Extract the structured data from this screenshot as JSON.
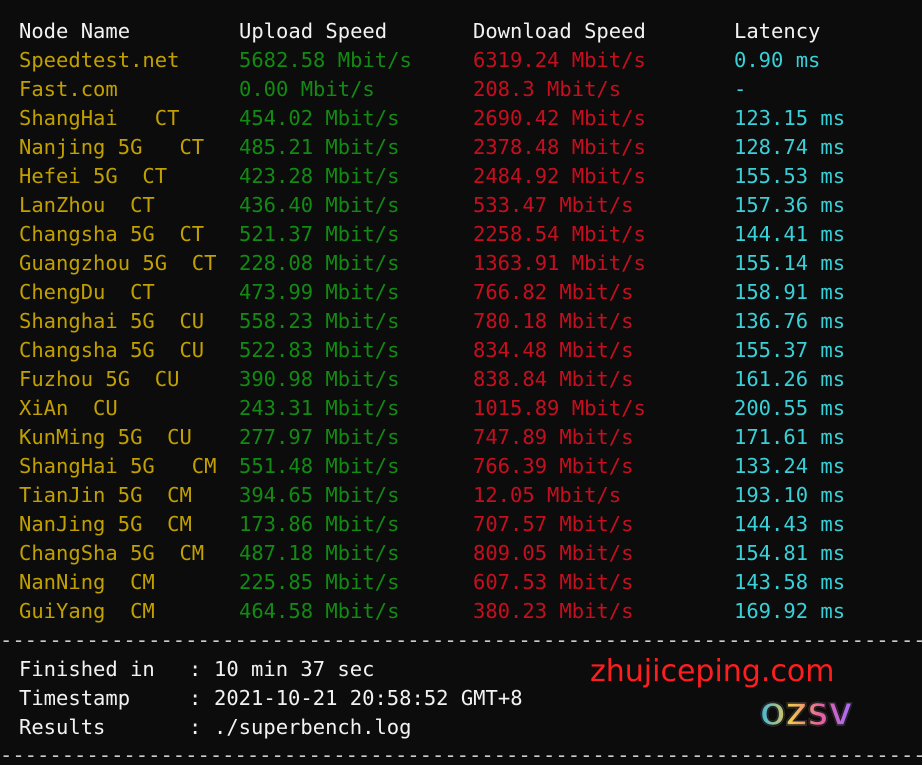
{
  "headers": {
    "node": "Node Name",
    "upload": "Upload Speed",
    "download": "Download Speed",
    "latency": "Latency"
  },
  "rows": [
    {
      "node": "Speedtest.net",
      "upload": "5682.58 Mbit/s",
      "download": "6319.24 Mbit/s",
      "latency": "0.90 ms"
    },
    {
      "node": "Fast.com",
      "upload": "0.00 Mbit/s",
      "download": "208.3 Mbit/s",
      "latency": "-"
    },
    {
      "node": "ShangHai   CT",
      "upload": "454.02 Mbit/s",
      "download": "2690.42 Mbit/s",
      "latency": "123.15 ms"
    },
    {
      "node": "Nanjing 5G   CT",
      "upload": "485.21 Mbit/s",
      "download": "2378.48 Mbit/s",
      "latency": "128.74 ms"
    },
    {
      "node": "Hefei 5G  CT",
      "upload": "423.28 Mbit/s",
      "download": "2484.92 Mbit/s",
      "latency": "155.53 ms"
    },
    {
      "node": "LanZhou  CT",
      "upload": "436.40 Mbit/s",
      "download": "533.47 Mbit/s",
      "latency": "157.36 ms"
    },
    {
      "node": "Changsha 5G  CT",
      "upload": "521.37 Mbit/s",
      "download": "2258.54 Mbit/s",
      "latency": "144.41 ms"
    },
    {
      "node": "Guangzhou 5G  CT",
      "upload": "228.08 Mbit/s",
      "download": "1363.91 Mbit/s",
      "latency": "155.14 ms"
    },
    {
      "node": "ChengDu  CT",
      "upload": "473.99 Mbit/s",
      "download": "766.82 Mbit/s",
      "latency": "158.91 ms"
    },
    {
      "node": "Shanghai 5G  CU",
      "upload": "558.23 Mbit/s",
      "download": "780.18 Mbit/s",
      "latency": "136.76 ms"
    },
    {
      "node": "Changsha 5G  CU",
      "upload": "522.83 Mbit/s",
      "download": "834.48 Mbit/s",
      "latency": "155.37 ms"
    },
    {
      "node": "Fuzhou 5G  CU",
      "upload": "390.98 Mbit/s",
      "download": "838.84 Mbit/s",
      "latency": "161.26 ms"
    },
    {
      "node": "XiAn  CU",
      "upload": "243.31 Mbit/s",
      "download": "1015.89 Mbit/s",
      "latency": "200.55 ms"
    },
    {
      "node": "KunMing 5G  CU",
      "upload": "277.97 Mbit/s",
      "download": "747.89 Mbit/s",
      "latency": "171.61 ms"
    },
    {
      "node": "ShangHai 5G   CM",
      "upload": "551.48 Mbit/s",
      "download": "766.39 Mbit/s",
      "latency": "133.24 ms"
    },
    {
      "node": "TianJin 5G  CM",
      "upload": "394.65 Mbit/s",
      "download": "12.05 Mbit/s",
      "latency": "193.10 ms"
    },
    {
      "node": "NanJing 5G  CM",
      "upload": "173.86 Mbit/s",
      "download": "707.57 Mbit/s",
      "latency": "144.43 ms"
    },
    {
      "node": "ChangSha 5G  CM",
      "upload": "487.18 Mbit/s",
      "download": "809.05 Mbit/s",
      "latency": "154.81 ms"
    },
    {
      "node": "NanNing  CM",
      "upload": "225.85 Mbit/s",
      "download": "607.53 Mbit/s",
      "latency": "143.58 ms"
    },
    {
      "node": "GuiYang  CM",
      "upload": "464.58 Mbit/s",
      "download": "380.23 Mbit/s",
      "latency": "169.92 ms"
    }
  ],
  "footer": [
    {
      "key": "Finished in",
      "sep": ":",
      "value": "10 min 37 sec"
    },
    {
      "key": "Timestamp",
      "sep": ":",
      "value": "2021-10-21 20:58:52 GMT+8"
    },
    {
      "key": "Results",
      "sep": ":",
      "value": "./superbench.log"
    }
  ],
  "watermark": {
    "text": "zhujiceping.com",
    "logo": "OZSV"
  },
  "colors": {
    "background": "#0c0c0c",
    "node": "#c1a000",
    "upload": "#138a13",
    "download": "#c50f1f",
    "latency": "#3ad0d8"
  }
}
